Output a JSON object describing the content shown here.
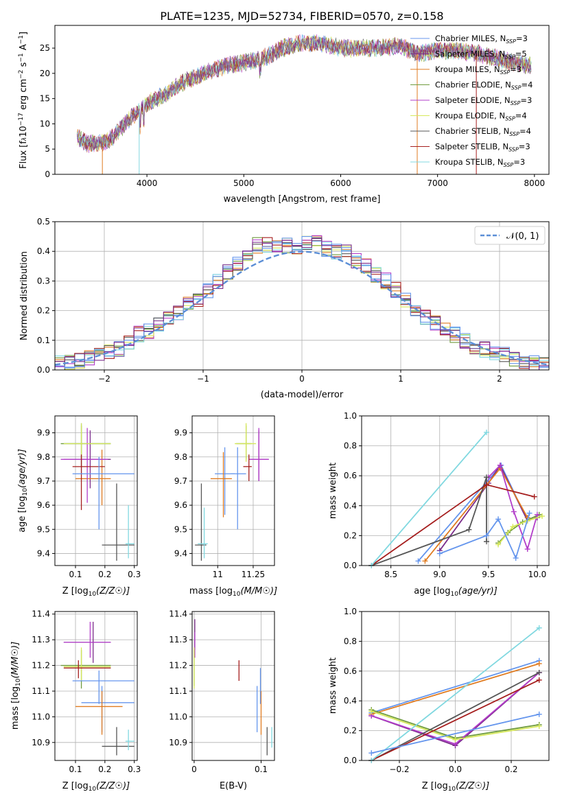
{
  "figure_title": "PLATE=1235, MJD=52734, FIBERID=0570, z=0.158",
  "models": [
    {
      "label": "Chabrier MILES, N",
      "nssp": "=3",
      "color": "#6495ed"
    },
    {
      "label": "Salpeter MILES, N",
      "nssp": "=5",
      "color": "#7b2d8b"
    },
    {
      "label": "Kroupa MILES, N",
      "nssp": "=3",
      "color": "#e07b20"
    },
    {
      "label": "Chabrier ELODIE, N",
      "nssp": "=4",
      "color": "#6e9a3c"
    },
    {
      "label": "Salpeter ELODIE, N",
      "nssp": "=3",
      "color": "#b23cc9"
    },
    {
      "label": "Kroupa ELODIE, N",
      "nssp": "=4",
      "color": "#d6e85a"
    },
    {
      "label": "Chabrier STELIB, N",
      "nssp": "=4",
      "color": "#555555"
    },
    {
      "label": "Salpeter STELIB, N",
      "nssp": "=3",
      "color": "#a51d1d"
    },
    {
      "label": "Kroupa STELIB, N",
      "nssp": "=3",
      "color": "#80d8e0"
    }
  ],
  "legend_sub": "SSP",
  "spectrum_panel": {
    "ylabel": "Flux [f",
    "ylabel_unit": "10",
    "ylabel_exp": "−17",
    "ylabel_tail": " erg cm",
    "ylabel_exp2": "−2",
    "ylabel_s": " s",
    "ylabel_exp3": "−1",
    "ylabel_end": " A",
    "ylabel_exp4": "−1",
    "ylabel_close": "]",
    "xlabel": "wavelength [Angstrom, rest frame]"
  },
  "hist_panel": {
    "xlabel": "(data-model)/error",
    "ylabel": "Normed distribution",
    "legend": "𝒩(0, 1)"
  },
  "age_z_panel": {
    "xlabel": "Z [log",
    "ylabel": "age  [log"
  },
  "age_mass_panel": {
    "xlabel": "mass [log"
  },
  "weight_age_panel": {
    "xlabel": "age  [log",
    "ylabel": "mass weight"
  },
  "mass_z_panel": {
    "xlabel": "Z [log",
    "ylabel": "mass [log"
  },
  "mass_ebv_panel": {
    "xlabel": "E(B-V)"
  },
  "weight_z_panel": {
    "xlabel": "Z [log",
    "ylabel": "mass weight"
  },
  "chart_data": [
    {
      "type": "line",
      "title": "PLATE=1235, MJD=52734, FIBERID=0570, z=0.158",
      "xlabel": "wavelength [Angstrom, rest frame]",
      "ylabel": "Flux [fλ10^−17 erg cm^−2 s^−1 A^−1]",
      "xlim": [
        3050,
        8150
      ],
      "ylim": [
        0,
        29.5
      ],
      "xticks": [
        4000,
        5000,
        6000,
        7000,
        8000
      ],
      "yticks": [
        0,
        5,
        10,
        15,
        20,
        25
      ],
      "grid": false,
      "legend": "top-right",
      "x": [
        3280,
        3400,
        3600,
        3800,
        4000,
        4200,
        4400,
        4600,
        4800,
        5000,
        5200,
        5400,
        5600,
        5800,
        6000,
        6200,
        6400,
        6600,
        6800,
        7000,
        7200,
        7400,
        7600,
        7800,
        7970
      ],
      "y": [
        7.5,
        6.0,
        6.5,
        10.5,
        14.0,
        16.0,
        18.5,
        20.0,
        21.5,
        22.0,
        23.0,
        25.0,
        26.0,
        26.0,
        25.0,
        25.0,
        25.0,
        25.5,
        24.0,
        24.5,
        24.5,
        24.0,
        23.0,
        22.0,
        21.5
      ]
    },
    {
      "type": "bar",
      "xlabel": "(data-model)/error",
      "ylabel": "Normed distribution",
      "xlim": [
        -2.5,
        2.5
      ],
      "ylim": [
        0,
        0.5
      ],
      "xticks": [
        -2,
        -1,
        0,
        1,
        2
      ],
      "yticks": [
        0.0,
        0.1,
        0.2,
        0.3,
        0.4,
        0.5
      ],
      "grid": true,
      "legend": "top-right",
      "bin_centers": [
        -2.45,
        -2.35,
        -2.25,
        -2.15,
        -2.05,
        -1.95,
        -1.85,
        -1.75,
        -1.65,
        -1.55,
        -1.45,
        -1.35,
        -1.25,
        -1.15,
        -1.05,
        -0.95,
        -0.85,
        -0.75,
        -0.65,
        -0.55,
        -0.45,
        -0.35,
        -0.25,
        -0.15,
        -0.05,
        0.05,
        0.15,
        0.25,
        0.35,
        0.45,
        0.55,
        0.65,
        0.75,
        0.85,
        0.95,
        1.05,
        1.15,
        1.25,
        1.35,
        1.45,
        1.55,
        1.65,
        1.75,
        1.85,
        1.95,
        2.05,
        2.15,
        2.25,
        2.35,
        2.45
      ],
      "values": [
        0.02,
        0.025,
        0.03,
        0.04,
        0.05,
        0.06,
        0.07,
        0.09,
        0.12,
        0.13,
        0.15,
        0.17,
        0.19,
        0.22,
        0.24,
        0.27,
        0.3,
        0.33,
        0.36,
        0.39,
        0.42,
        0.42,
        0.41,
        0.42,
        0.41,
        0.43,
        0.43,
        0.41,
        0.4,
        0.4,
        0.37,
        0.35,
        0.32,
        0.3,
        0.27,
        0.24,
        0.21,
        0.18,
        0.16,
        0.14,
        0.12,
        0.1,
        0.08,
        0.07,
        0.06,
        0.05,
        0.04,
        0.03,
        0.025,
        0.02
      ],
      "reference_curve": "𝒩(0, 1)"
    },
    {
      "type": "scatter",
      "xlabel": "Z [log10(Z/Z☉)]",
      "ylabel": "age  [log10(age/yr)]",
      "xlim": [
        0.03,
        0.31
      ],
      "ylim": [
        9.35,
        9.97
      ],
      "xticks": [
        0.1,
        0.2,
        0.3
      ],
      "yticks": [
        9.4,
        9.5,
        9.6,
        9.7,
        9.8,
        9.9
      ],
      "grid": true,
      "series": [
        {
          "x": 0.12,
          "y": 9.855,
          "xerr": [
            0.06,
            0.22
          ],
          "yerr": [
            9.73,
            9.94
          ],
          "model": 0
        },
        {
          "x": 0.15,
          "y": 9.79,
          "xerr": [
            0.06,
            0.22
          ],
          "yerr": [
            9.67,
            9.91
          ],
          "model": 1
        },
        {
          "x": 0.19,
          "y": 9.71,
          "xerr": [
            0.1,
            0.22
          ],
          "yerr": [
            9.6,
            9.83
          ],
          "model": 2
        },
        {
          "x": 0.12,
          "y": 9.855,
          "xerr": [
            0.05,
            0.22
          ],
          "yerr": [
            9.76,
            9.93
          ],
          "model": 3
        },
        {
          "x": 0.14,
          "y": 9.79,
          "xerr": [
            0.05,
            0.21
          ],
          "yerr": [
            9.61,
            9.92
          ],
          "model": 4
        },
        {
          "x": 0.12,
          "y": 9.855,
          "xerr": [
            0.06,
            0.22
          ],
          "yerr": [
            9.79,
            9.94
          ],
          "model": 5
        },
        {
          "x": 0.24,
          "y": 9.435,
          "xerr": [
            0.19,
            0.3
          ],
          "yerr": [
            9.37,
            9.69
          ],
          "model": 6
        },
        {
          "x": 0.12,
          "y": 9.76,
          "xerr": [
            0.09,
            0.2
          ],
          "yerr": [
            9.58,
            9.81
          ],
          "model": 7
        },
        {
          "x": 0.28,
          "y": 9.44,
          "xerr": [
            0.27,
            0.3
          ],
          "yerr": [
            9.38,
            9.6
          ],
          "model": 8
        },
        {
          "x": 0.18,
          "y": 9.73,
          "xerr": [
            0.09,
            0.3
          ],
          "yerr": [
            9.5,
            9.8
          ],
          "model": 9
        }
      ]
    },
    {
      "type": "scatter",
      "xlabel": "mass [log10(M/M☉)]",
      "xlim": [
        10.82,
        11.4
      ],
      "ylim": [
        9.35,
        9.97
      ],
      "xticks": [
        11.0,
        11.25
      ],
      "yticks": [
        9.4,
        9.5,
        9.6,
        9.7,
        9.8,
        9.9
      ],
      "grid": true,
      "series": [
        {
          "x": 11.05,
          "y": 9.73,
          "xerr": [
            10.98,
            11.12
          ],
          "yerr": [
            9.56,
            9.84
          ],
          "model": 0
        },
        {
          "x": 11.29,
          "y": 9.79,
          "xerr": [
            11.22,
            11.36
          ],
          "yerr": [
            9.7,
            9.91
          ],
          "model": 1
        },
        {
          "x": 11.04,
          "y": 9.71,
          "xerr": [
            10.95,
            11.1
          ],
          "yerr": [
            9.55,
            9.82
          ],
          "model": 2
        },
        {
          "x": 11.2,
          "y": 9.855,
          "xerr": [
            11.13,
            11.24
          ],
          "yerr": [
            9.79,
            9.93
          ],
          "model": 3
        },
        {
          "x": 11.29,
          "y": 9.79,
          "xerr": [
            11.22,
            11.36
          ],
          "yerr": [
            9.7,
            9.92
          ],
          "model": 4
        },
        {
          "x": 11.2,
          "y": 9.855,
          "xerr": [
            11.12,
            11.27
          ],
          "yerr": [
            9.78,
            9.94
          ],
          "model": 5
        },
        {
          "x": 10.885,
          "y": 9.435,
          "xerr": [
            10.84,
            10.92
          ],
          "yerr": [
            9.37,
            9.69
          ],
          "model": 6
        },
        {
          "x": 11.22,
          "y": 9.76,
          "xerr": [
            11.18,
            11.24
          ],
          "yerr": [
            9.7,
            9.81
          ],
          "model": 7
        },
        {
          "x": 10.905,
          "y": 9.44,
          "xerr": [
            10.86,
            10.93
          ],
          "yerr": [
            9.38,
            9.59
          ],
          "model": 8
        },
        {
          "x": 11.14,
          "y": 9.73,
          "xerr": [
            11.09,
            11.2
          ],
          "yerr": [
            9.5,
            9.84
          ],
          "model": 9
        }
      ]
    },
    {
      "type": "line",
      "xlabel": "age  [log10(age/yr)]",
      "ylabel": "mass weight",
      "xlim": [
        8.2,
        10.12
      ],
      "ylim": [
        0,
        1.0
      ],
      "xticks": [
        8.5,
        9.0,
        9.5,
        10.0
      ],
      "yticks": [
        0.0,
        0.2,
        0.4,
        0.6,
        0.8,
        1.0
      ],
      "grid": true,
      "series": [
        {
          "model": 0,
          "x": [
            8.78,
            9.63,
            9.9
          ],
          "y": [
            0.03,
            0.67,
            0.3
          ]
        },
        {
          "model": 1,
          "x": [
            9.0,
            9.5,
            9.62,
            9.9,
            10.0
          ],
          "y": [
            0.1,
            0.55,
            0.67,
            0.3,
            0.32
          ]
        },
        {
          "model": 2,
          "x": [
            8.85,
            9.62,
            9.9
          ],
          "y": [
            0.03,
            0.65,
            0.32
          ]
        },
        {
          "model": 3,
          "x": [
            9.6,
            9.7,
            9.85,
            10.02
          ],
          "y": [
            0.15,
            0.22,
            0.29,
            0.34
          ]
        },
        {
          "model": 4,
          "x": [
            9.5,
            9.62,
            9.76,
            9.9,
            10.0
          ],
          "y": [
            0.59,
            0.67,
            0.36,
            0.11,
            0.34
          ]
        },
        {
          "model": 5,
          "x": [
            9.6,
            9.75,
            9.9,
            10.05
          ],
          "y": [
            0.14,
            0.26,
            0.3,
            0.33
          ]
        },
        {
          "model": 6,
          "x": [
            8.3,
            9.3,
            9.48,
            9.48
          ],
          "y": [
            0.0,
            0.24,
            0.59,
            0.16
          ]
        },
        {
          "model": 7,
          "x": [
            8.3,
            9.48,
            9.97
          ],
          "y": [
            0.0,
            0.54,
            0.46
          ]
        },
        {
          "model": 8,
          "x": [
            8.3,
            9.48
          ],
          "y": [
            0.0,
            0.89
          ]
        },
        {
          "model": 9,
          "x": [
            9.0,
            9.48,
            9.6,
            9.78,
            9.92
          ],
          "y": [
            0.08,
            0.2,
            0.31,
            0.05,
            0.35
          ]
        }
      ]
    },
    {
      "type": "scatter",
      "xlabel": "Z [log10(Z/Z☉)]",
      "ylabel": "mass [log10(M/M☉)]",
      "xlim": [
        0.03,
        0.31
      ],
      "ylim": [
        10.83,
        11.41
      ],
      "xticks": [
        0.1,
        0.2,
        0.3
      ],
      "yticks": [
        10.9,
        11.0,
        11.1,
        11.2,
        11.3,
        11.4
      ],
      "grid": true,
      "series": [
        {
          "x": 0.19,
          "y": 11.055,
          "xerr": [
            0.12,
            0.3
          ],
          "yerr": [
            10.94,
            11.12
          ],
          "model": 0
        },
        {
          "x": 0.16,
          "y": 11.29,
          "xerr": [
            0.06,
            0.22
          ],
          "yerr": [
            11.21,
            11.37
          ],
          "model": 1
        },
        {
          "x": 0.19,
          "y": 11.04,
          "xerr": [
            0.1,
            0.26
          ],
          "yerr": [
            10.93,
            11.1
          ],
          "model": 2
        },
        {
          "x": 0.12,
          "y": 11.2,
          "xerr": [
            0.05,
            0.22
          ],
          "yerr": [
            11.11,
            11.26
          ],
          "model": 3
        },
        {
          "x": 0.15,
          "y": 11.29,
          "xerr": [
            0.06,
            0.22
          ],
          "yerr": [
            11.23,
            11.37
          ],
          "model": 4
        },
        {
          "x": 0.12,
          "y": 11.195,
          "xerr": [
            0.06,
            0.22
          ],
          "yerr": [
            11.14,
            11.27
          ],
          "model": 5
        },
        {
          "x": 0.24,
          "y": 10.885,
          "xerr": [
            0.19,
            0.3
          ],
          "yerr": [
            10.85,
            10.96
          ],
          "model": 6
        },
        {
          "x": 0.11,
          "y": 11.19,
          "xerr": [
            0.06,
            0.22
          ],
          "yerr": [
            11.15,
            11.22
          ],
          "model": 7
        },
        {
          "x": 0.28,
          "y": 10.905,
          "xerr": [
            0.27,
            0.3
          ],
          "yerr": [
            10.87,
            10.95
          ],
          "model": 8
        },
        {
          "x": 0.18,
          "y": 11.14,
          "xerr": [
            0.09,
            0.3
          ],
          "yerr": [
            11.05,
            11.18
          ],
          "model": 9
        }
      ]
    },
    {
      "type": "scatter",
      "xlabel": "E(B-V)",
      "xlim": [
        -0.003,
        0.12
      ],
      "ylim": [
        10.83,
        11.41
      ],
      "xticks": [
        0.0,
        0.1
      ],
      "yticks": [
        10.9,
        11.0,
        11.1,
        11.2,
        11.3,
        11.4
      ],
      "grid": true,
      "series": [
        {
          "x": 0.094,
          "yerr": [
            10.94,
            11.12
          ],
          "model": 0
        },
        {
          "x": 0.001,
          "yerr": [
            11.26,
            11.38
          ],
          "model": 1
        },
        {
          "x": 0.1,
          "yerr": [
            10.93,
            11.1
          ],
          "model": 2
        },
        {
          "x": 0.0,
          "yerr": [
            11.12,
            11.26
          ],
          "model": 3
        },
        {
          "x": 0.001,
          "yerr": [
            11.23,
            11.33
          ],
          "model": 4
        },
        {
          "x": 0.0,
          "yerr": [
            11.11,
            11.27
          ],
          "model": 5
        },
        {
          "x": 0.109,
          "yerr": [
            10.85,
            10.96
          ],
          "model": 6
        },
        {
          "x": 0.067,
          "yerr": [
            11.14,
            11.22
          ],
          "model": 7
        },
        {
          "x": 0.116,
          "yerr": [
            10.88,
            10.96
          ],
          "model": 8
        },
        {
          "x": 0.099,
          "yerr": [
            11.05,
            11.19
          ],
          "model": 9
        }
      ]
    },
    {
      "type": "line",
      "xlabel": "Z [log10(Z/Z☉)]",
      "ylabel": "mass weight",
      "xlim": [
        -0.335,
        0.335
      ],
      "ylim": [
        0,
        1.0
      ],
      "xticks": [
        -0.2,
        0.0,
        0.2
      ],
      "yticks": [
        0.0,
        0.2,
        0.4,
        0.6,
        0.8,
        1.0
      ],
      "grid": true,
      "series": [
        {
          "model": 0,
          "x": [
            -0.3,
            0.3
          ],
          "y": [
            0.32,
            0.67
          ]
        },
        {
          "model": 1,
          "x": [
            -0.3,
            0.0,
            0.3
          ],
          "y": [
            0.3,
            0.1,
            0.59
          ]
        },
        {
          "model": 2,
          "x": [
            -0.3,
            0.3
          ],
          "y": [
            0.31,
            0.65
          ]
        },
        {
          "model": 3,
          "x": [
            -0.3,
            0.0,
            0.3
          ],
          "y": [
            0.34,
            0.15,
            0.24
          ]
        },
        {
          "model": 4,
          "x": [
            -0.3,
            0.0,
            0.3
          ],
          "y": [
            0.3,
            0.11,
            0.59
          ]
        },
        {
          "model": 5,
          "x": [
            -0.3,
            0.0,
            0.3
          ],
          "y": [
            0.33,
            0.14,
            0.23
          ]
        },
        {
          "model": 6,
          "x": [
            -0.3,
            0.3
          ],
          "y": [
            0.0,
            0.59
          ]
        },
        {
          "model": 7,
          "x": [
            -0.3,
            0.3
          ],
          "y": [
            0.0,
            0.54
          ]
        },
        {
          "model": 8,
          "x": [
            -0.3,
            0.3
          ],
          "y": [
            0.0,
            0.89
          ]
        },
        {
          "model": 9,
          "x": [
            -0.3,
            0.3
          ],
          "y": [
            0.05,
            0.31
          ]
        }
      ]
    }
  ]
}
